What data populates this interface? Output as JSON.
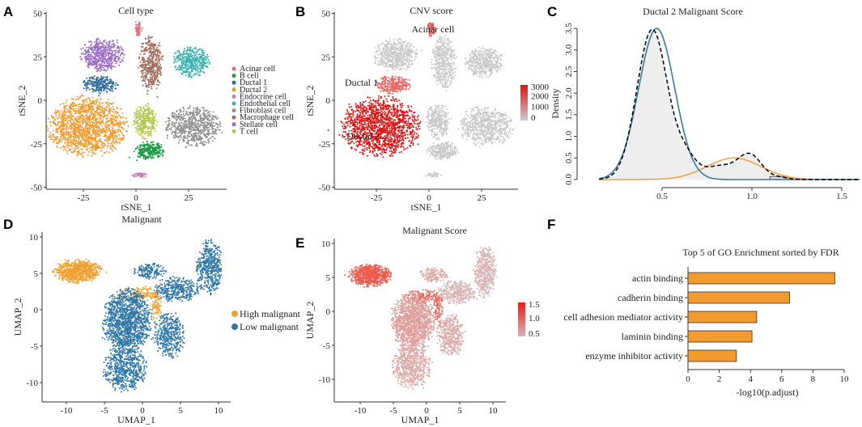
{
  "panels": {
    "A": "A",
    "B": "B",
    "C": "C",
    "D": "D",
    "E": "E",
    "F": "F"
  },
  "chart_data": [
    {
      "id": "A",
      "type": "scatter",
      "title": "Cell type",
      "xlabel": "tSNE_1",
      "ylabel": "tSNE_2",
      "xticks": [
        -25,
        0,
        25
      ],
      "yticks": [
        50,
        25,
        0,
        -25,
        -50
      ],
      "xlim": [
        -45,
        42
      ],
      "ylim": [
        -50,
        52
      ],
      "clusters": [
        {
          "name": "Acinar cell",
          "color": "#e2707c",
          "cx": 1,
          "cy": 41,
          "sx": 1.2,
          "sy": 3,
          "n": 60,
          "cnv": 1800,
          "label": "Acinar cell"
        },
        {
          "name": "B cell",
          "color": "#1f9a45",
          "cx": 6.5,
          "cy": -29,
          "sx": 5,
          "sy": 3.5,
          "n": 260,
          "cnv": 0
        },
        {
          "name": "Ductal 1",
          "color": "#2f6f9c",
          "cx": -17,
          "cy": 9,
          "sx": 6,
          "sy": 3.5,
          "n": 260,
          "cnv": 1400,
          "label": "Ductal 1"
        },
        {
          "name": "Ductal 2",
          "color": "#f29a2e",
          "cx": -23,
          "cy": -15,
          "sx": 13,
          "sy": 12,
          "n": 1400,
          "cnv": 3000,
          "label": "Ductal 2"
        },
        {
          "name": "Endocrine cell",
          "color": "#c27fb8",
          "cx": 2,
          "cy": -43,
          "sx": 2.5,
          "sy": 1,
          "n": 40,
          "cnv": 0
        },
        {
          "name": "Endothelial cell",
          "color": "#3cb4b0",
          "cx": 26,
          "cy": 22,
          "sx": 6,
          "sy": 6,
          "n": 420,
          "cnv": 0
        },
        {
          "name": "Fibroblast cell",
          "color": "#8f8f8f",
          "cx": 27,
          "cy": -15,
          "sx": 9,
          "sy": 8,
          "n": 650,
          "cnv": 0
        },
        {
          "name": "Macrophage cell",
          "color": "#a06a5c",
          "cx": 7,
          "cy": 21,
          "sx": 4,
          "sy": 11,
          "n": 420,
          "cnv": 0
        },
        {
          "name": "Stellate cell",
          "color": "#9a6ac4",
          "cx": -16,
          "cy": 26,
          "sx": 7,
          "sy": 6.5,
          "n": 500,
          "cnv": 0
        },
        {
          "name": "T cell",
          "color": "#b4c74c",
          "cx": 4.5,
          "cy": -12,
          "sx": 4,
          "sy": 7,
          "n": 300,
          "cnv": 0
        }
      ]
    },
    {
      "id": "B",
      "type": "scatter",
      "title": "CNV score",
      "xlabel": "tSNE_1",
      "ylabel": "tSNE_2",
      "xticks": [
        -25,
        0,
        25
      ],
      "yticks": [
        50,
        25,
        0,
        -25,
        -50
      ],
      "colorbar": {
        "labels": [
          "3000",
          "2000",
          "1000",
          "0"
        ],
        "low": "#cccccc",
        "high": "#e01010"
      },
      "annotations": [
        "Acinar cell",
        "Ductal 1",
        "Ductal 2"
      ]
    },
    {
      "id": "C",
      "type": "line",
      "title": "Ductal 2 Malignant Score",
      "ylabel": "Density",
      "xlabel": "",
      "xticks": [
        "0.5",
        "1.0",
        "1.5"
      ],
      "yticks": [
        "0.0",
        "0.5",
        "1.0",
        "1.5",
        "2.0",
        "2.5",
        "3.0",
        "3.5"
      ],
      "xlim": [
        0.1,
        1.6
      ],
      "ylim": [
        0,
        3.5
      ],
      "series": [
        {
          "name": "low component",
          "color": "#3a7a9c",
          "style": "solid",
          "components": [
            {
              "mean": 0.47,
              "sd": 0.1,
              "w": 0.877
            }
          ]
        },
        {
          "name": "high component",
          "color": "#f0a040",
          "style": "solid",
          "components": [
            {
              "mean": 0.9,
              "sd": 0.15,
              "w": 0.188
            }
          ]
        },
        {
          "name": "density",
          "color": "#000000",
          "style": "dashed",
          "fill": "#eeeeee",
          "components": [
            {
              "mean": 0.445,
              "sd": 0.085,
              "w": 0.74
            },
            {
              "mean": 0.63,
              "sd": 0.06,
              "w": 0.07
            },
            {
              "mean": 0.82,
              "sd": 0.09,
              "w": 0.07
            },
            {
              "mean": 0.99,
              "sd": 0.065,
              "w": 0.09
            },
            {
              "mean": 1.15,
              "sd": 0.05,
              "w": 0.006
            }
          ]
        }
      ]
    },
    {
      "id": "D",
      "type": "scatter",
      "title": "Malignant",
      "xlabel": "UMAP_1",
      "ylabel": "UMAP_2",
      "xticks": [
        -10,
        -5,
        0,
        5,
        10
      ],
      "yticks": [
        10,
        5,
        0,
        -5,
        -10
      ],
      "legend": [
        {
          "label": "High malignant",
          "color": "#f0a030"
        },
        {
          "label": "Low malignant",
          "color": "#2f77a8"
        }
      ],
      "clusters": [
        {
          "group": "High malignant",
          "cx": -8.5,
          "cy": 5.3,
          "sx": 2.2,
          "sy": 1.1,
          "n": 700,
          "score": 1.3
        },
        {
          "group": "High malignant",
          "cx": -0.5,
          "cy": 2.2,
          "sx": 2,
          "sy": 0.7,
          "n": 140,
          "score": 1.2
        },
        {
          "group": "High malignant",
          "cx": 1.8,
          "cy": 0.5,
          "sx": 0.5,
          "sy": 1.5,
          "n": 80,
          "score": 1.2
        },
        {
          "group": "Low malignant",
          "cx": -2,
          "cy": -1.5,
          "sx": 2.2,
          "sy": 3,
          "n": 1300,
          "score": 0.7
        },
        {
          "group": "Low malignant",
          "cx": -2.3,
          "cy": -8,
          "sx": 2,
          "sy": 2.3,
          "n": 600,
          "score": 0.6
        },
        {
          "group": "Low malignant",
          "cx": 3.6,
          "cy": -3.5,
          "sx": 1.4,
          "sy": 2.2,
          "n": 400,
          "score": 0.6
        },
        {
          "group": "Low malignant",
          "cx": 4.5,
          "cy": 2.8,
          "sx": 2,
          "sy": 1.2,
          "n": 350,
          "score": 0.5
        },
        {
          "group": "Low malignant",
          "cx": 8.8,
          "cy": 5.8,
          "sx": 1.2,
          "sy": 2.6,
          "n": 450,
          "score": 0.5
        },
        {
          "group": "Low malignant",
          "cx": 1,
          "cy": 5.3,
          "sx": 1.5,
          "sy": 0.8,
          "n": 150,
          "score": 0.6
        }
      ]
    },
    {
      "id": "E",
      "type": "scatter",
      "title": "Malignant Score",
      "xlabel": "UMAP_1",
      "ylabel": "UMAP_2",
      "xticks": [
        -10,
        -5,
        0,
        5,
        10
      ],
      "yticks": [
        10,
        5,
        0,
        -5,
        -10
      ],
      "colorbar": {
        "labels": [
          "1.5",
          "1.0",
          "0.5"
        ],
        "low": "#d9b4b4",
        "high": "#e02020"
      }
    },
    {
      "id": "F",
      "type": "bar",
      "title": "Top 5 of GO Enrichment sorted by FDR",
      "xlabel": "-log10(p.adjust)",
      "xticks": [
        0,
        2,
        4,
        6,
        8,
        10
      ],
      "xlim": [
        0,
        10
      ],
      "color": "#f29a2e",
      "categories": [
        "actin binding",
        "cadherin binding",
        "cell adhesion mediator activity",
        "laminin binding",
        "enzyme inhibitor activity"
      ],
      "values": [
        9.4,
        6.5,
        4.4,
        4.1,
        3.1
      ]
    }
  ]
}
